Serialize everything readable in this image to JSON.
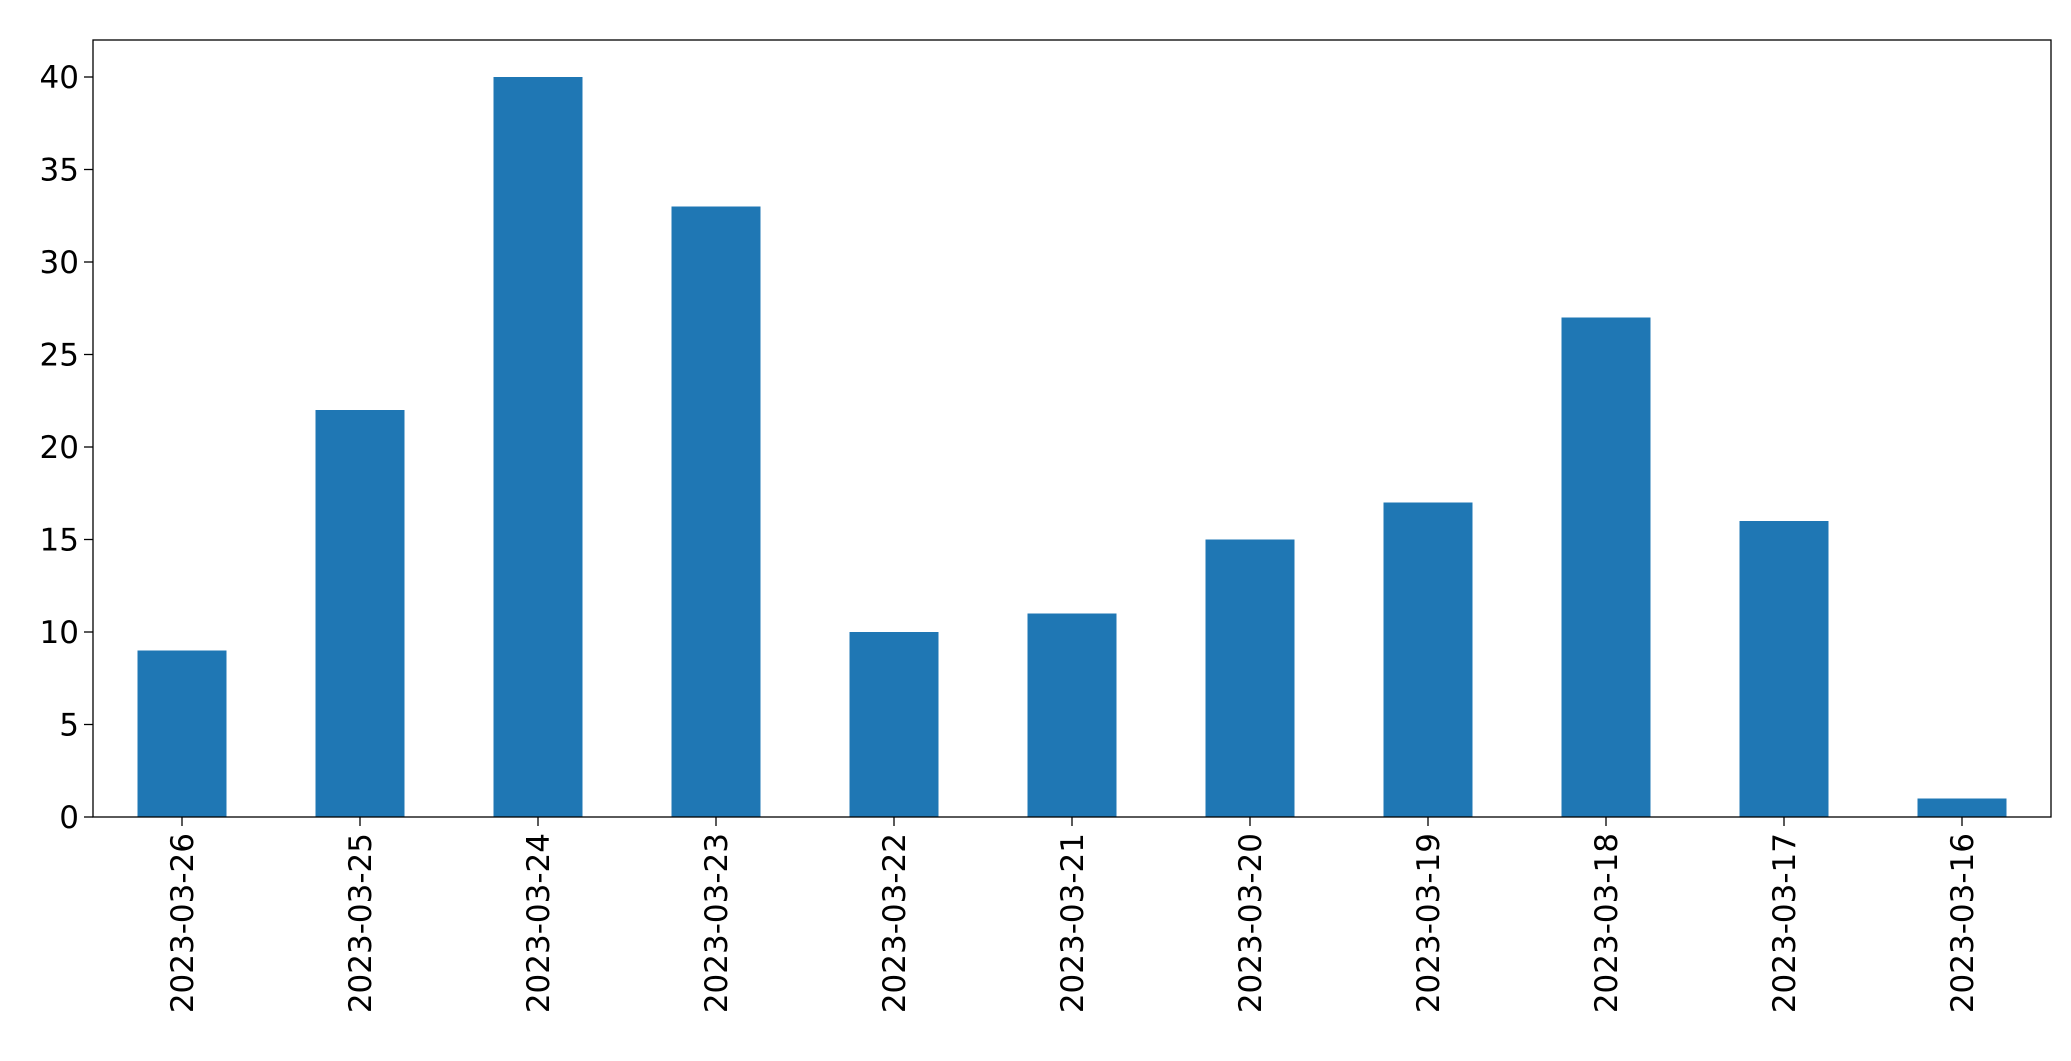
{
  "chart_data": {
    "type": "bar",
    "categories": [
      "2023-03-26",
      "2023-03-25",
      "2023-03-24",
      "2023-03-23",
      "2023-03-22",
      "2023-03-21",
      "2023-03-20",
      "2023-03-19",
      "2023-03-18",
      "2023-03-17",
      "2023-03-16"
    ],
    "values": [
      9,
      22,
      40,
      33,
      10,
      11,
      15,
      17,
      27,
      16,
      1
    ],
    "color": "#1f77b4",
    "ylim": [
      0,
      42
    ],
    "yticks": [
      0,
      5,
      10,
      15,
      20,
      25,
      30,
      35,
      40
    ],
    "grid": false
  }
}
